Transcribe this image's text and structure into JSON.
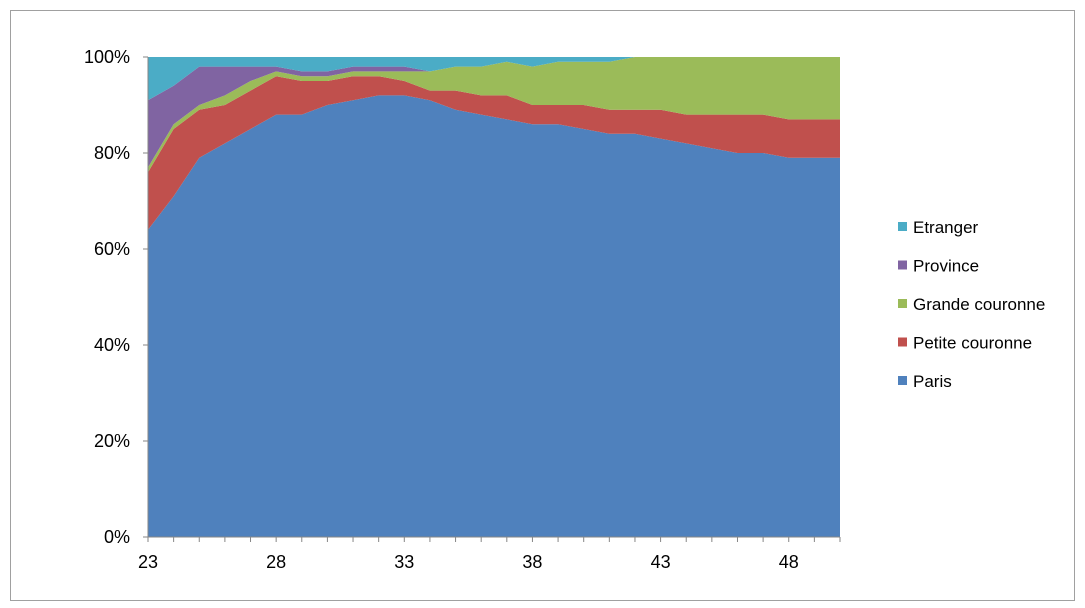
{
  "chart_data": {
    "type": "area",
    "stacked": "percent",
    "x": [
      23,
      24,
      25,
      26,
      27,
      28,
      29,
      30,
      31,
      32,
      33,
      34,
      35,
      36,
      37,
      38,
      39,
      40,
      41,
      42,
      43,
      44,
      45,
      46,
      47,
      48,
      49,
      50
    ],
    "series": [
      {
        "name": "Paris",
        "color": "#4F81BD",
        "values": [
          64,
          71,
          79,
          82,
          85,
          88,
          88,
          90,
          91,
          92,
          92,
          91,
          89,
          88,
          87,
          86,
          86,
          85,
          84,
          84,
          83,
          82,
          81,
          80,
          80,
          79,
          79,
          79
        ]
      },
      {
        "name": "Petite couronne",
        "color": "#C0504D",
        "values": [
          12,
          14,
          10,
          8,
          8,
          8,
          7,
          5,
          5,
          4,
          3,
          2,
          4,
          4,
          5,
          4,
          4,
          5,
          5,
          5,
          6,
          6,
          7,
          8,
          8,
          8,
          8,
          8
        ]
      },
      {
        "name": "Grande couronne",
        "color": "#9BBB59",
        "values": [
          1,
          1,
          1,
          2,
          2,
          1,
          1,
          1,
          1,
          1,
          2,
          4,
          5,
          6,
          7,
          8,
          9,
          9,
          10,
          11,
          11,
          12,
          12,
          12,
          12,
          13,
          13,
          13
        ]
      },
      {
        "name": "Province",
        "color": "#8064A2",
        "values": [
          14,
          8,
          8,
          6,
          3,
          1,
          1,
          1,
          1,
          1,
          1,
          0,
          0,
          0,
          0,
          0,
          0,
          0,
          0,
          0,
          0,
          0,
          0,
          0,
          0,
          0,
          0,
          0
        ]
      },
      {
        "name": "Etranger",
        "color": "#4BACC6",
        "values": [
          9,
          6,
          2,
          2,
          2,
          2,
          3,
          3,
          2,
          2,
          2,
          3,
          2,
          2,
          1,
          2,
          1,
          1,
          1,
          0,
          0,
          0,
          0,
          0,
          0,
          0,
          0,
          0
        ]
      }
    ],
    "xticks": [
      23,
      28,
      33,
      38,
      43,
      48
    ],
    "xtick_labels": [
      "23",
      "28",
      "33",
      "38",
      "43",
      "48"
    ],
    "yticks": [
      0,
      20,
      40,
      60,
      80,
      100
    ],
    "ytick_labels": [
      "0%",
      "20%",
      "40%",
      "60%",
      "80%",
      "100%"
    ],
    "ylim": [
      0,
      100
    ],
    "xlabel": "",
    "ylabel": "",
    "title": "",
    "grid": false,
    "legend_position": "right",
    "legend_order": [
      "Etranger",
      "Province",
      "Grande couronne",
      "Petite couronne",
      "Paris"
    ],
    "axis_color": "#868686",
    "frame_color": "#A0A0A0"
  }
}
